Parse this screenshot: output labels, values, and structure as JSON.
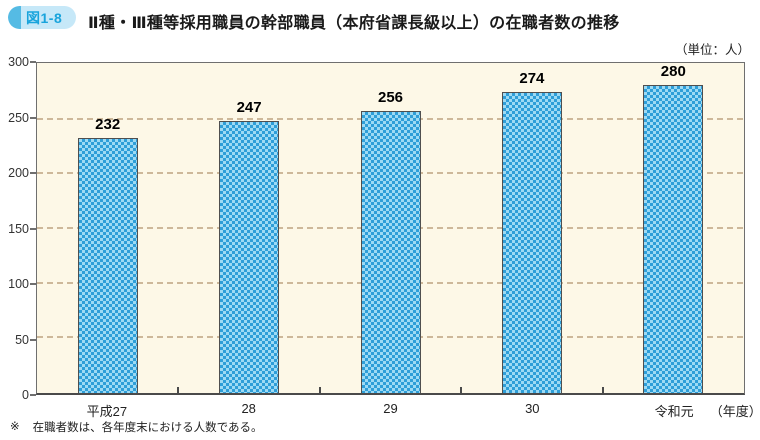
{
  "header": {
    "badge": "図1-8",
    "title": "Ⅱ種・Ⅲ種等採用職員の幹部職員（本府省課長級以上）の在職者数の推移"
  },
  "unit_label": "（単位：人）",
  "chart_data": {
    "type": "bar",
    "title": "Ⅱ種・Ⅲ種等採用職員の幹部職員（本府省課長級以上）の在職者数の推移",
    "categories": [
      "平成27",
      "28",
      "29",
      "30",
      "令和元"
    ],
    "values": [
      232,
      247,
      256,
      274,
      280
    ],
    "xlabel": "（年度）",
    "ylabel": "（単位：人）",
    "ylim": [
      0,
      300
    ],
    "yticks": [
      0,
      50,
      100,
      150,
      200,
      250,
      300
    ],
    "grid": "horizontal-dashed",
    "legend": "none",
    "colors": {
      "bar_fill": "#2e9ed8",
      "bar_fill_light": "#9ddaf4",
      "bar_border": "#4f4f4f",
      "plot_background": "#fdf8e7",
      "gridline": "#cdb89a",
      "badge_background": "#c6e8f8",
      "badge_cap": "#55bbe4",
      "badge_text": "#19a4dc"
    }
  },
  "footnote": {
    "marker": "※",
    "text": "在職者数は、各年度末における人数である。"
  }
}
